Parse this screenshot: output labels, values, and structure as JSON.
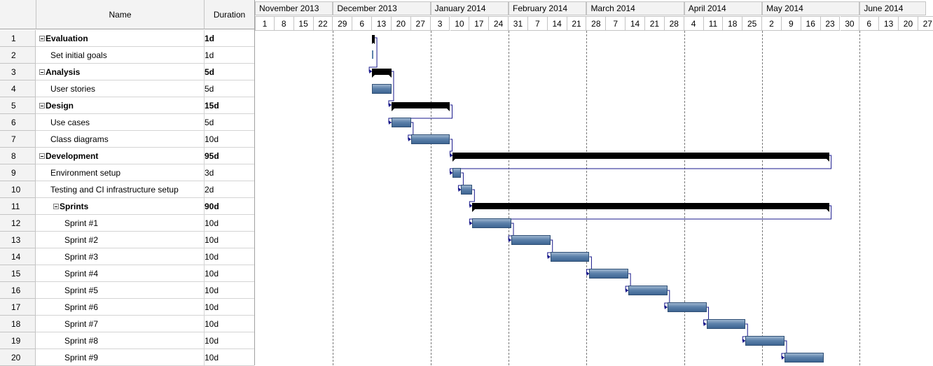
{
  "grid": {
    "headers": {
      "id": "",
      "name": "Name",
      "duration": "Duration"
    },
    "rows": [
      {
        "id": "1",
        "name": "Evaluation",
        "duration": "1d",
        "level": 0,
        "summary": true
      },
      {
        "id": "2",
        "name": "Set initial goals",
        "duration": "1d",
        "level": 1,
        "summary": false
      },
      {
        "id": "3",
        "name": "Analysis",
        "duration": "5d",
        "level": 0,
        "summary": true
      },
      {
        "id": "4",
        "name": "User stories",
        "duration": "5d",
        "level": 1,
        "summary": false
      },
      {
        "id": "5",
        "name": "Design",
        "duration": "15d",
        "level": 0,
        "summary": true
      },
      {
        "id": "6",
        "name": "Use cases",
        "duration": "5d",
        "level": 1,
        "summary": false
      },
      {
        "id": "7",
        "name": "Class diagrams",
        "duration": "10d",
        "level": 1,
        "summary": false
      },
      {
        "id": "8",
        "name": "Development",
        "duration": "95d",
        "level": 0,
        "summary": true
      },
      {
        "id": "9",
        "name": "Environment setup",
        "duration": "3d",
        "level": 1,
        "summary": false
      },
      {
        "id": "10",
        "name": "Testing and CI infrastructure setup",
        "duration": "2d",
        "level": 1,
        "summary": false
      },
      {
        "id": "11",
        "name": "Sprints",
        "duration": "90d",
        "level": 1,
        "summary": true
      },
      {
        "id": "12",
        "name": "Sprint #1",
        "duration": "10d",
        "level": 2,
        "summary": false
      },
      {
        "id": "13",
        "name": "Sprint #2",
        "duration": "10d",
        "level": 2,
        "summary": false
      },
      {
        "id": "14",
        "name": "Sprint #3",
        "duration": "10d",
        "level": 2,
        "summary": false
      },
      {
        "id": "15",
        "name": "Sprint #4",
        "duration": "10d",
        "level": 2,
        "summary": false
      },
      {
        "id": "16",
        "name": "Sprint #5",
        "duration": "10d",
        "level": 2,
        "summary": false
      },
      {
        "id": "17",
        "name": "Sprint #6",
        "duration": "10d",
        "level": 2,
        "summary": false
      },
      {
        "id": "18",
        "name": "Sprint #7",
        "duration": "10d",
        "level": 2,
        "summary": false
      },
      {
        "id": "19",
        "name": "Sprint #8",
        "duration": "10d",
        "level": 2,
        "summary": false
      },
      {
        "id": "20",
        "name": "Sprint #9",
        "duration": "10d",
        "level": 2,
        "summary": false
      }
    ]
  },
  "timeline": {
    "months": [
      {
        "label": "November 2013",
        "weeks": 4
      },
      {
        "label": "December 2013",
        "weeks": 4
      },
      {
        "label": "January 2014",
        "weeks": 4
      },
      {
        "label": "February 2014",
        "weeks": 4
      },
      {
        "label": "March 2014",
        "weeks": 4
      },
      {
        "label": "April 2014",
        "weeks": 4
      },
      {
        "label": "May 2014",
        "weeks": 4
      },
      {
        "label": "June 2014",
        "weeks": 4
      }
    ],
    "weeks": [
      "1",
      "8",
      "15",
      "22",
      "29",
      "6",
      "13",
      "20",
      "27",
      "3",
      "10",
      "17",
      "24",
      "31",
      "7",
      "14",
      "21",
      "28",
      "7",
      "14",
      "21",
      "28",
      "4",
      "11",
      "18",
      "25",
      "2",
      "9",
      "16",
      "23",
      "30",
      "6",
      "13",
      "20",
      "27"
    ],
    "month_start_weeks": [
      0,
      4,
      9,
      13,
      17,
      22,
      26,
      31
    ]
  },
  "tasks": [
    {
      "row": 1,
      "type": "summary",
      "start": "2013-12-13",
      "end": "2013-12-14"
    },
    {
      "row": 2,
      "type": "milestone",
      "start": "2013-12-13",
      "end": "2013-12-14"
    },
    {
      "row": 3,
      "type": "summary",
      "start": "2013-12-13",
      "end": "2013-12-20"
    },
    {
      "row": 4,
      "type": "task",
      "start": "2013-12-13",
      "end": "2013-12-20"
    },
    {
      "row": 5,
      "type": "summary",
      "start": "2013-12-20",
      "end": "2014-01-10"
    },
    {
      "row": 6,
      "type": "task",
      "start": "2013-12-20",
      "end": "2013-12-27"
    },
    {
      "row": 7,
      "type": "task",
      "start": "2013-12-27",
      "end": "2014-01-10"
    },
    {
      "row": 8,
      "type": "summary",
      "start": "2014-01-11",
      "end": "2014-05-26"
    },
    {
      "row": 9,
      "type": "task",
      "start": "2014-01-11",
      "end": "2014-01-14"
    },
    {
      "row": 10,
      "type": "task",
      "start": "2014-01-14",
      "end": "2014-01-18"
    },
    {
      "row": 11,
      "type": "summary",
      "start": "2014-01-18",
      "end": "2014-05-26"
    },
    {
      "row": 12,
      "type": "task",
      "start": "2014-01-18",
      "end": "2014-02-01"
    },
    {
      "row": 13,
      "type": "task",
      "start": "2014-02-01",
      "end": "2014-02-15"
    },
    {
      "row": 14,
      "type": "task",
      "start": "2014-02-15",
      "end": "2014-03-01"
    },
    {
      "row": 15,
      "type": "task",
      "start": "2014-03-01",
      "end": "2014-03-15"
    },
    {
      "row": 16,
      "type": "task",
      "start": "2014-03-15",
      "end": "2014-03-29"
    },
    {
      "row": 17,
      "type": "task",
      "start": "2014-03-29",
      "end": "2014-04-12"
    },
    {
      "row": 18,
      "type": "task",
      "start": "2014-04-12",
      "end": "2014-04-26"
    },
    {
      "row": 19,
      "type": "task",
      "start": "2014-04-26",
      "end": "2014-05-10"
    },
    {
      "row": 20,
      "type": "task",
      "start": "2014-05-10",
      "end": "2014-05-24"
    }
  ],
  "links": [
    [
      1,
      3
    ],
    [
      3,
      5
    ],
    [
      5,
      6
    ],
    [
      6,
      7
    ],
    [
      7,
      8
    ],
    [
      8,
      9
    ],
    [
      9,
      10
    ],
    [
      10,
      11
    ],
    [
      11,
      12
    ],
    [
      12,
      13
    ],
    [
      13,
      14
    ],
    [
      14,
      15
    ],
    [
      15,
      16
    ],
    [
      16,
      17
    ],
    [
      17,
      18
    ],
    [
      18,
      19
    ],
    [
      19,
      20
    ]
  ],
  "colors": {
    "task_bar": "#5d82ab",
    "summary_bar": "#000000",
    "link": "#1a1a8c",
    "header_bg": "#f3f3f3"
  }
}
